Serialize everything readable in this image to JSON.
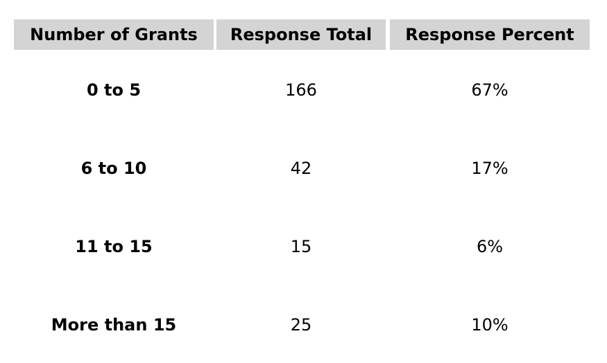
{
  "table": {
    "header": [
      "Number of Grants",
      "Response Total",
      "Response Percent"
    ],
    "rows": [
      [
        "0 to 5",
        "166",
        "67%"
      ],
      [
        "6 to 10",
        "42",
        "17%"
      ],
      [
        "11 to 15",
        "15",
        "6%"
      ],
      [
        "More than 15",
        "25",
        "10%"
      ]
    ]
  }
}
